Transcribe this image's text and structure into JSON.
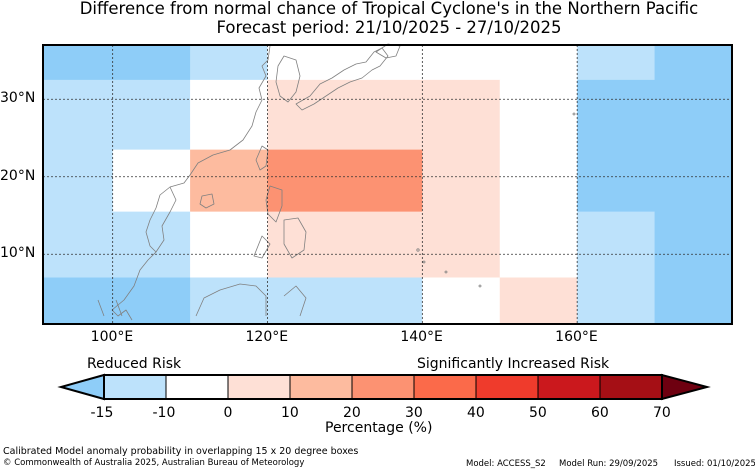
{
  "title": {
    "line1": "Difference from normal chance of Tropical Cyclone's in the Northern Pacific",
    "line2": "Forecast period: 21/10/2025 - 27/10/2025"
  },
  "map": {
    "region": "Northern Pacific",
    "lon_range": [
      91,
      180
    ],
    "lat_range": [
      1,
      37
    ],
    "lat_labels": [
      "30°N",
      "20°N",
      "10°N"
    ],
    "lat_values": [
      30,
      20,
      10
    ],
    "lon_labels": [
      "100°E",
      "120°E",
      "140°E",
      "160°E"
    ],
    "lon_values": [
      100,
      120,
      140,
      160
    ],
    "cells": [
      {
        "lon": [
          91,
          110
        ],
        "lat": [
          32.5,
          37
        ],
        "category": -15
      },
      {
        "lon": [
          110,
          120
        ],
        "lat": [
          32.5,
          37
        ],
        "category": -10
      },
      {
        "lon": [
          120,
          160
        ],
        "lat": [
          32.5,
          37
        ],
        "category": 0
      },
      {
        "lon": [
          160,
          170
        ],
        "lat": [
          32.5,
          37
        ],
        "category": -10
      },
      {
        "lon": [
          170,
          180
        ],
        "lat": [
          32.5,
          37
        ],
        "category": -15
      },
      {
        "lon": [
          91,
          100
        ],
        "lat": [
          23.5,
          32.5
        ],
        "category": -10
      },
      {
        "lon": [
          100,
          110
        ],
        "lat": [
          23.5,
          32.5
        ],
        "category": -10
      },
      {
        "lon": [
          110,
          120
        ],
        "lat": [
          23.5,
          32.5
        ],
        "category": 0
      },
      {
        "lon": [
          120,
          150
        ],
        "lat": [
          23.5,
          32.5
        ],
        "category": 10
      },
      {
        "lon": [
          150,
          160
        ],
        "lat": [
          23.5,
          32.5
        ],
        "category": 0
      },
      {
        "lon": [
          160,
          170
        ],
        "lat": [
          23.5,
          32.5
        ],
        "category": -15
      },
      {
        "lon": [
          170,
          180
        ],
        "lat": [
          23.5,
          32.5
        ],
        "category": -15
      },
      {
        "lon": [
          91,
          100
        ],
        "lat": [
          15.5,
          23.5
        ],
        "category": -10
      },
      {
        "lon": [
          100,
          110
        ],
        "lat": [
          15.5,
          23.5
        ],
        "category": 0
      },
      {
        "lon": [
          110,
          120
        ],
        "lat": [
          15.5,
          23.5
        ],
        "category": 20
      },
      {
        "lon": [
          120,
          140
        ],
        "lat": [
          15.5,
          23.5
        ],
        "category": 30
      },
      {
        "lon": [
          140,
          150
        ],
        "lat": [
          15.5,
          23.5
        ],
        "category": 10
      },
      {
        "lon": [
          150,
          160
        ],
        "lat": [
          15.5,
          23.5
        ],
        "category": 0
      },
      {
        "lon": [
          160,
          170
        ],
        "lat": [
          15.5,
          23.5
        ],
        "category": -15
      },
      {
        "lon": [
          170,
          180
        ],
        "lat": [
          15.5,
          23.5
        ],
        "category": -15
      },
      {
        "lon": [
          91,
          100
        ],
        "lat": [
          7,
          15.5
        ],
        "category": -10
      },
      {
        "lon": [
          100,
          110
        ],
        "lat": [
          7,
          15.5
        ],
        "category": -10
      },
      {
        "lon": [
          110,
          120
        ],
        "lat": [
          7,
          15.5
        ],
        "category": 0
      },
      {
        "lon": [
          120,
          150
        ],
        "lat": [
          7,
          15.5
        ],
        "category": 10
      },
      {
        "lon": [
          150,
          160
        ],
        "lat": [
          7,
          15.5
        ],
        "category": 0
      },
      {
        "lon": [
          160,
          170
        ],
        "lat": [
          7,
          15.5
        ],
        "category": -10
      },
      {
        "lon": [
          170,
          180
        ],
        "lat": [
          7,
          15.5
        ],
        "category": -15
      },
      {
        "lon": [
          91,
          110
        ],
        "lat": [
          1,
          7
        ],
        "category": -15
      },
      {
        "lon": [
          110,
          120
        ],
        "lat": [
          1,
          7
        ],
        "category": -10
      },
      {
        "lon": [
          120,
          140
        ],
        "lat": [
          1,
          7
        ],
        "category": -10
      },
      {
        "lon": [
          140,
          150
        ],
        "lat": [
          1,
          7
        ],
        "category": 0
      },
      {
        "lon": [
          150,
          160
        ],
        "lat": [
          1,
          7
        ],
        "category": 10
      },
      {
        "lon": [
          160,
          170
        ],
        "lat": [
          1,
          7
        ],
        "category": -10
      },
      {
        "lon": [
          170,
          180
        ],
        "lat": [
          1,
          7
        ],
        "category": -15
      }
    ]
  },
  "legend": {
    "left_label": "Reduced Risk",
    "right_label": "Significantly Increased Risk",
    "axis_label": "Percentage (%)",
    "ticks": [
      "-15",
      "-10",
      "0",
      "10",
      "20",
      "30",
      "40",
      "50",
      "60",
      "70"
    ],
    "under_color": "#8ecdf8",
    "over_color": "#6e0010",
    "bins": [
      {
        "from": -15,
        "to": -10,
        "color": "#bde2fb"
      },
      {
        "from": -10,
        "to": 0,
        "color": "#ffffff"
      },
      {
        "from": 0,
        "to": 10,
        "color": "#fee0d6"
      },
      {
        "from": 10,
        "to": 20,
        "color": "#fdbb9f"
      },
      {
        "from": 20,
        "to": 30,
        "color": "#fc9272"
      },
      {
        "from": 30,
        "to": 40,
        "color": "#fb6a4a"
      },
      {
        "from": 40,
        "to": 50,
        "color": "#ef3b2c"
      },
      {
        "from": 50,
        "to": 60,
        "color": "#cb181d"
      },
      {
        "from": 60,
        "to": 70,
        "color": "#a50f15"
      }
    ]
  },
  "category_colors": {
    "-15": "#8ecdf8",
    "-10": "#bde2fb",
    "0": "#ffffff",
    "10": "#fee0d6",
    "20": "#fdbb9f",
    "30": "#fc9272",
    "40": "#fb6a4a"
  },
  "footer": {
    "note": "Calibrated Model anomaly probability in overlapping 15 x 20 degree boxes",
    "copyright": "© Commonwealth of Australia 2025, Australian Bureau of Meteorology",
    "model": "Model: ACCESS_S2",
    "model_run": "Model Run: 29/09/2025",
    "issued": "Issued: 01/10/2025"
  }
}
